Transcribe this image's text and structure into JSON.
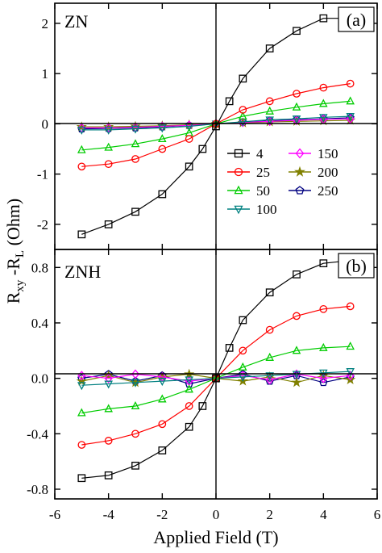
{
  "chart_data": {
    "type": "scatter",
    "xlabel": "Applied Field (T)",
    "ylabel": "R",
    "ylabel_sub1": "xy",
    "ylabel_mid": " -R",
    "ylabel_sub2": "L",
    "ylabel_tail": " (Ohm)",
    "xlim": [
      -6,
      6
    ],
    "xticks": [
      "-6",
      "-4",
      "-2",
      "0",
      "2",
      "4",
      "6"
    ],
    "legend_position": "inside panel (a), lower right",
    "series_styles": [
      {
        "name": "4",
        "color": "#000000",
        "marker": "square"
      },
      {
        "name": "25",
        "color": "#ff0000",
        "marker": "circle"
      },
      {
        "name": "50",
        "color": "#00cc00",
        "marker": "triangle-up"
      },
      {
        "name": "100",
        "color": "#008080",
        "marker": "triangle-down"
      },
      {
        "name": "150",
        "color": "#ff00ff",
        "marker": "diamond"
      },
      {
        "name": "200",
        "color": "#808000",
        "marker": "star"
      },
      {
        "name": "250",
        "color": "#000080",
        "marker": "pentagon"
      }
    ],
    "panels": [
      {
        "tag": "(a)",
        "label": "ZN",
        "ylim": [
          -2.5,
          2.4
        ],
        "yticks": [
          2,
          1,
          0,
          -1,
          -2
        ],
        "ytick_labels": [
          "2",
          "1",
          "0",
          "-1",
          "-2"
        ],
        "series": [
          {
            "name": "4",
            "x": [
              -5,
              -4,
              -3,
              -2,
              -1,
              -0.5,
              0,
              0.5,
              1,
              2,
              3,
              4,
              5
            ],
            "y": [
              -2.2,
              -2.0,
              -1.75,
              -1.4,
              -0.85,
              -0.5,
              -0.05,
              0.45,
              0.9,
              1.5,
              1.85,
              2.1,
              2.1
            ]
          },
          {
            "name": "25",
            "x": [
              -5,
              -4,
              -3,
              -2,
              -1,
              0,
              1,
              2,
              3,
              4,
              5
            ],
            "y": [
              -0.85,
              -0.8,
              -0.7,
              -0.5,
              -0.3,
              0,
              0.28,
              0.45,
              0.6,
              0.72,
              0.8
            ]
          },
          {
            "name": "50",
            "x": [
              -5,
              -4,
              -3,
              -2,
              -1,
              0,
              1,
              2,
              3,
              4,
              5
            ],
            "y": [
              -0.52,
              -0.47,
              -0.4,
              -0.3,
              -0.18,
              0,
              0.15,
              0.25,
              0.33,
              0.4,
              0.45
            ]
          },
          {
            "name": "100",
            "x": [
              -5,
              -4,
              -3,
              -2,
              -1,
              0,
              1,
              2,
              3,
              4,
              5
            ],
            "y": [
              -0.12,
              -0.12,
              -0.1,
              -0.08,
              -0.05,
              0,
              0.04,
              0.08,
              0.1,
              0.13,
              0.15
            ]
          },
          {
            "name": "150",
            "x": [
              -5,
              -4,
              -3,
              -2,
              -1,
              0,
              1,
              2,
              3,
              4,
              5
            ],
            "y": [
              -0.08,
              -0.08,
              -0.07,
              -0.05,
              -0.03,
              0,
              0.03,
              0.05,
              0.07,
              0.09,
              0.1
            ]
          },
          {
            "name": "200",
            "x": [
              -5,
              -4,
              -3,
              -2,
              -1,
              0,
              1,
              2,
              3,
              4,
              5
            ],
            "y": [
              -0.06,
              -0.06,
              -0.05,
              -0.04,
              -0.02,
              0,
              0.02,
              0.04,
              0.05,
              0.06,
              0.07
            ]
          },
          {
            "name": "250",
            "x": [
              -5,
              -4,
              -3,
              -2,
              -1,
              0,
              1,
              2,
              3,
              4,
              5
            ],
            "y": [
              -0.1,
              -0.09,
              -0.08,
              -0.06,
              -0.03,
              0,
              0.03,
              0.06,
              0.08,
              0.1,
              0.12
            ]
          }
        ]
      },
      {
        "tag": "(b)",
        "label": "ZNH",
        "ylim": [
          -0.87,
          0.93
        ],
        "yticks": [
          0.8,
          0.4,
          0.0,
          -0.4,
          -0.8
        ],
        "ytick_labels": [
          "0.8",
          "0.4",
          "0.0",
          "-0.4",
          "-0.8"
        ],
        "series": [
          {
            "name": "4",
            "x": [
              -5,
              -4,
              -3,
              -2,
              -1,
              -0.5,
              0,
              0.5,
              1,
              2,
              3,
              4,
              5
            ],
            "y": [
              -0.72,
              -0.7,
              -0.63,
              -0.52,
              -0.35,
              -0.2,
              0,
              0.22,
              0.42,
              0.62,
              0.75,
              0.83,
              0.85
            ]
          },
          {
            "name": "25",
            "x": [
              -5,
              -4,
              -3,
              -2,
              -1,
              0,
              1,
              2,
              3,
              4,
              5
            ],
            "y": [
              -0.48,
              -0.45,
              -0.4,
              -0.33,
              -0.2,
              0,
              0.2,
              0.35,
              0.45,
              0.5,
              0.52
            ]
          },
          {
            "name": "50",
            "x": [
              -5,
              -4,
              -3,
              -2,
              -1,
              0,
              1,
              2,
              3,
              4,
              5
            ],
            "y": [
              -0.25,
              -0.22,
              -0.2,
              -0.15,
              -0.08,
              0,
              0.08,
              0.15,
              0.2,
              0.22,
              0.23
            ]
          },
          {
            "name": "100",
            "x": [
              -5,
              -4,
              -3,
              -2,
              -1,
              0,
              1,
              2,
              3,
              4,
              5
            ],
            "y": [
              -0.05,
              -0.04,
              -0.03,
              -0.02,
              -0.01,
              0,
              0.01,
              0.02,
              0.03,
              0.04,
              0.05
            ]
          },
          {
            "name": "150",
            "x": [
              -5,
              -4,
              -3,
              -2,
              -1,
              0,
              1,
              2,
              3,
              4,
              5
            ],
            "y": [
              0.02,
              0.0,
              0.03,
              0.01,
              -0.02,
              0,
              0.02,
              -0.01,
              0.03,
              0.0,
              0.02
            ]
          },
          {
            "name": "200",
            "x": [
              -5,
              -4,
              -3,
              -2,
              -1,
              0,
              1,
              2,
              3,
              4,
              5
            ],
            "y": [
              -0.02,
              0.02,
              -0.03,
              0.01,
              0.03,
              0,
              -0.02,
              0.01,
              -0.03,
              0.02,
              -0.01
            ]
          },
          {
            "name": "250",
            "x": [
              -5,
              -4,
              -3,
              -2,
              -1,
              0,
              1,
              2,
              3,
              4,
              5
            ],
            "y": [
              0.0,
              0.03,
              -0.02,
              0.02,
              -0.04,
              0,
              0.03,
              -0.02,
              0.02,
              -0.03,
              0.01
            ]
          }
        ]
      }
    ]
  }
}
